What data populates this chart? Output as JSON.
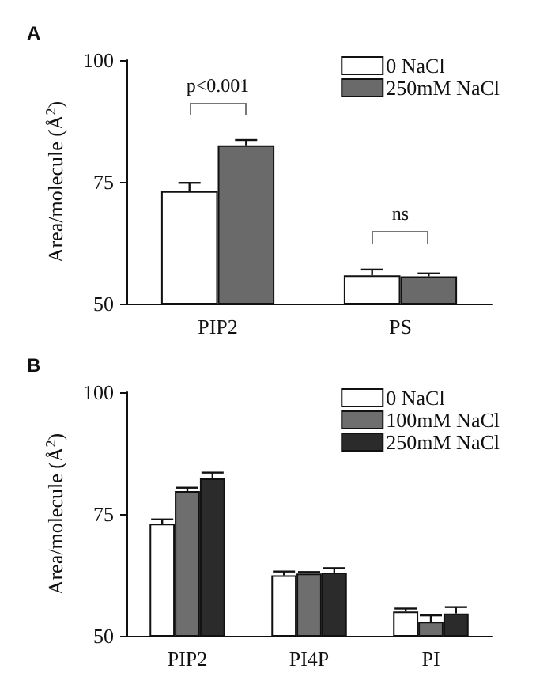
{
  "chart_data": [
    {
      "type": "bar",
      "title": "A",
      "ylabel": "Area/molecule (Å$^{2}$)",
      "categories": [
        "PIP2",
        "PS"
      ],
      "ylim": [
        50,
        100
      ],
      "yticks": [
        50,
        75,
        100
      ],
      "grid": false,
      "legend": "top right",
      "series": [
        {
          "name": "0 NaCl",
          "color": "#ffffff",
          "values": [
            73.1,
            55.8
          ],
          "errors": [
            [
              73.1,
              74.8
            ],
            [
              55.8,
              57.0
            ]
          ]
        },
        {
          "name": "250mM NaCl",
          "color": "#6a6a6a",
          "values": [
            82.5,
            55.6
          ],
          "errors": [
            [
              82.5,
              83.6
            ],
            [
              55.6,
              56.2
            ]
          ]
        }
      ],
      "annotations": [
        "p<0.001",
        "ns"
      ]
    },
    {
      "type": "bar",
      "title": "B",
      "ylabel": "Area/molecule (Å$^{2}$)",
      "categories": [
        "PIP2",
        "PI4P",
        "PI"
      ],
      "ylim": [
        50,
        100
      ],
      "yticks": [
        50,
        75,
        100
      ],
      "grid": false,
      "legend": "top right",
      "series": [
        {
          "name": "0 NaCl",
          "color": "#ffffff",
          "values": [
            73.0,
            62.4,
            55.0
          ],
          "errors": [
            [
              73.0,
              73.9
            ],
            [
              62.4,
              63.2
            ],
            [
              55.0,
              55.6
            ]
          ]
        },
        {
          "name": "100mM NaCl",
          "color": "#6e6e6e",
          "values": [
            79.7,
            62.8,
            52.9
          ],
          "errors": [
            [
              79.7,
              80.4
            ],
            [
              62.8,
              63.1
            ],
            [
              52.9,
              54.2
            ]
          ]
        },
        {
          "name": "250mM NaCl",
          "color": "#2b2b2b",
          "values": [
            82.3,
            63.0,
            54.6
          ],
          "errors": [
            [
              82.3,
              83.5
            ],
            [
              63.0,
              63.9
            ],
            [
              54.6,
              55.9
            ]
          ]
        }
      ]
    }
  ]
}
